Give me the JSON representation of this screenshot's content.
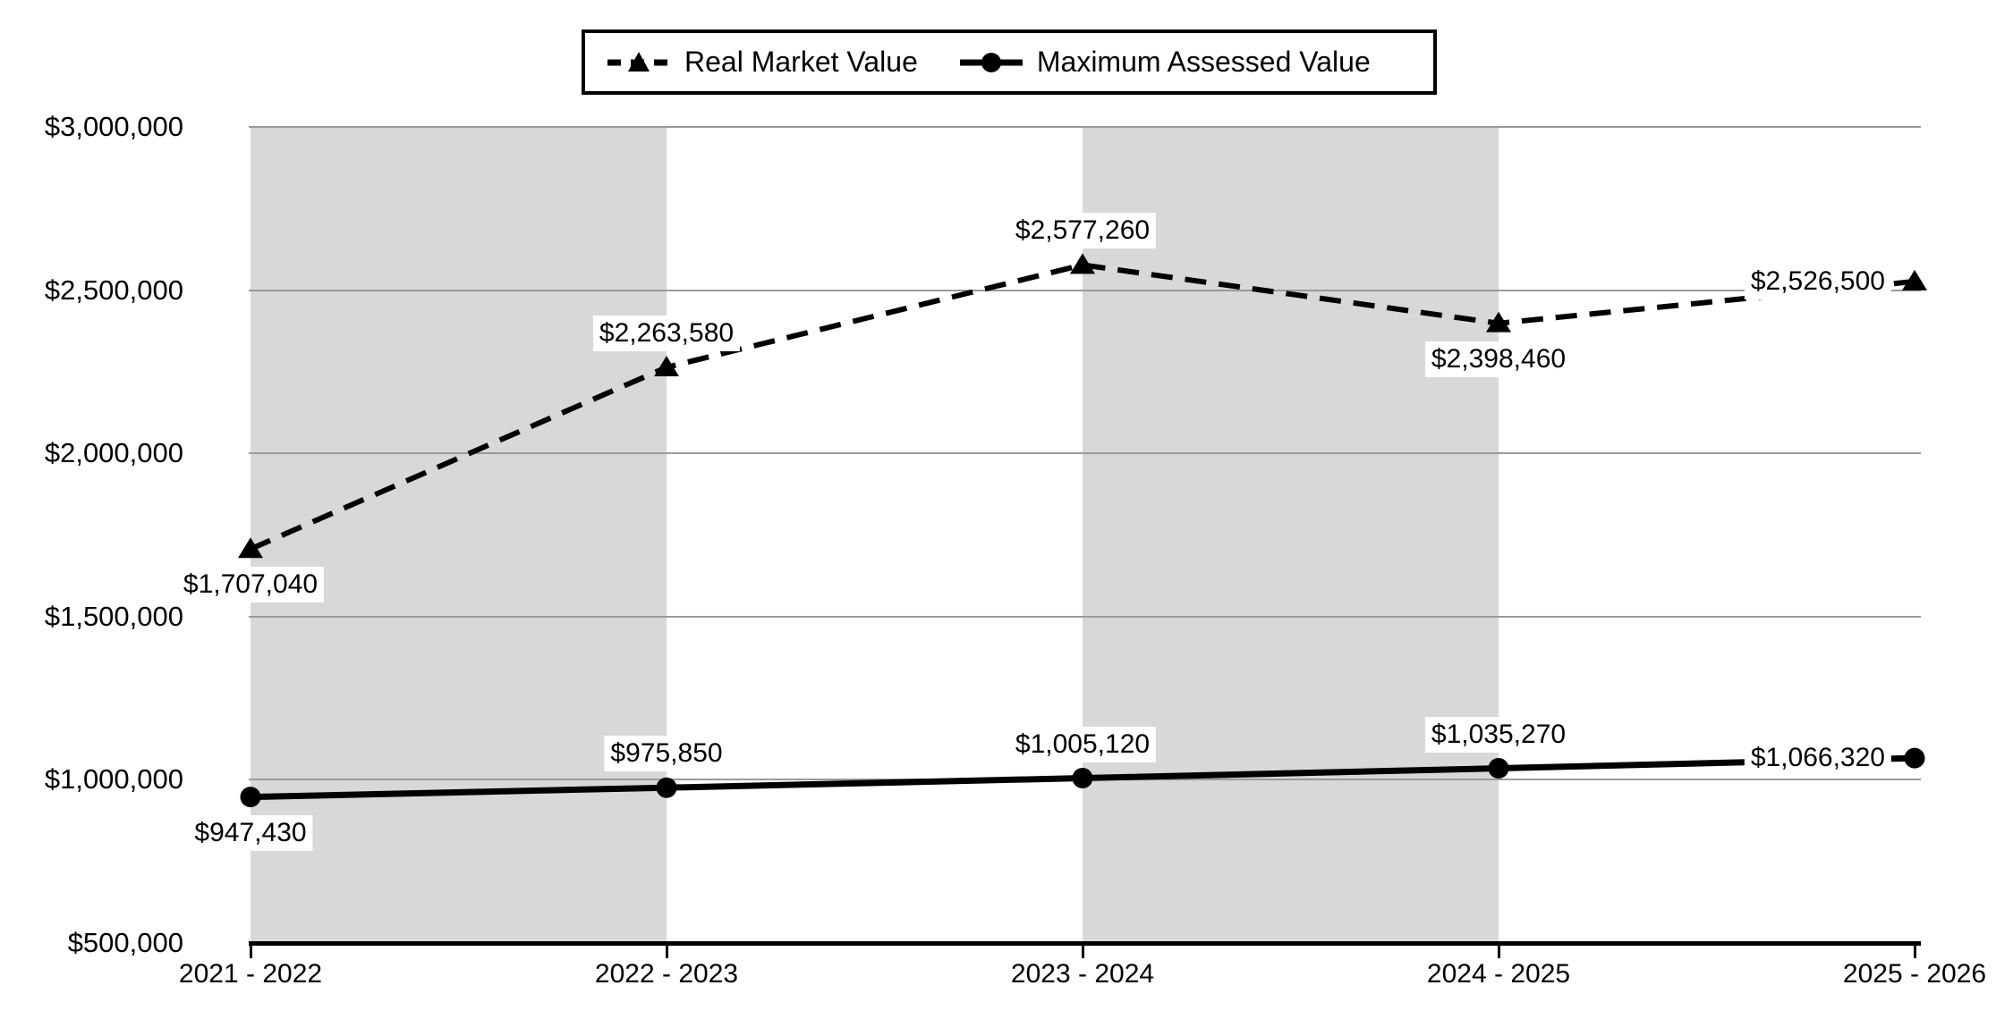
{
  "legend": {
    "items": [
      {
        "label": "Real Market Value",
        "line": "dashed",
        "marker": "triangle"
      },
      {
        "label": "Maximum Assessed Value",
        "line": "solid",
        "marker": "circle"
      }
    ]
  },
  "chart_data": {
    "type": "line",
    "categories": [
      "2021 - 2022",
      "2022 - 2023",
      "2023 - 2024",
      "2024 - 2025",
      "2025 - 2026"
    ],
    "series": [
      {
        "name": "Real Market Value",
        "line": "dashed",
        "marker": "triangle",
        "values": [
          1707040,
          2263580,
          2577260,
          2398460,
          2526500
        ],
        "labels": [
          "$1,707,040",
          "$2,263,580",
          "$2,577,260",
          "$2,398,460",
          "$2,526,500"
        ],
        "label_placement": [
          "below",
          "above",
          "above",
          "below",
          "left"
        ]
      },
      {
        "name": "Maximum Assessed Value",
        "line": "solid",
        "marker": "circle",
        "values": [
          947430,
          975850,
          1005120,
          1035270,
          1066320
        ],
        "labels": [
          "$947,430",
          "$975,850",
          "$1,005,120",
          "$1,035,270",
          "$1,066,320"
        ],
        "label_placement": [
          "below",
          "above",
          "above",
          "above",
          "left"
        ]
      }
    ],
    "y_axis": {
      "min": 500000,
      "max": 3000000,
      "step": 500000,
      "tick_labels_top_down": [
        "$3,000,000",
        "$2,500,000",
        "$2,000,000",
        "$1,500,000",
        "$1,000,000",
        "$500,000"
      ]
    },
    "x_axis": {
      "tick_labels": [
        "2021 - 2022",
        "2022 - 2023",
        "2023 - 2024",
        "2024 - 2025",
        "2025 - 2026"
      ]
    },
    "plot_bands": {
      "shaded_category_spans": [
        [
          0,
          1
        ],
        [
          2,
          3
        ]
      ]
    },
    "legend_position": "top",
    "grid": true,
    "colors": {
      "series": "#000000",
      "band": "#d8d8d8",
      "gridline": "#9a9a9a",
      "background": "#ffffff",
      "label_background": "#ffffff"
    }
  }
}
